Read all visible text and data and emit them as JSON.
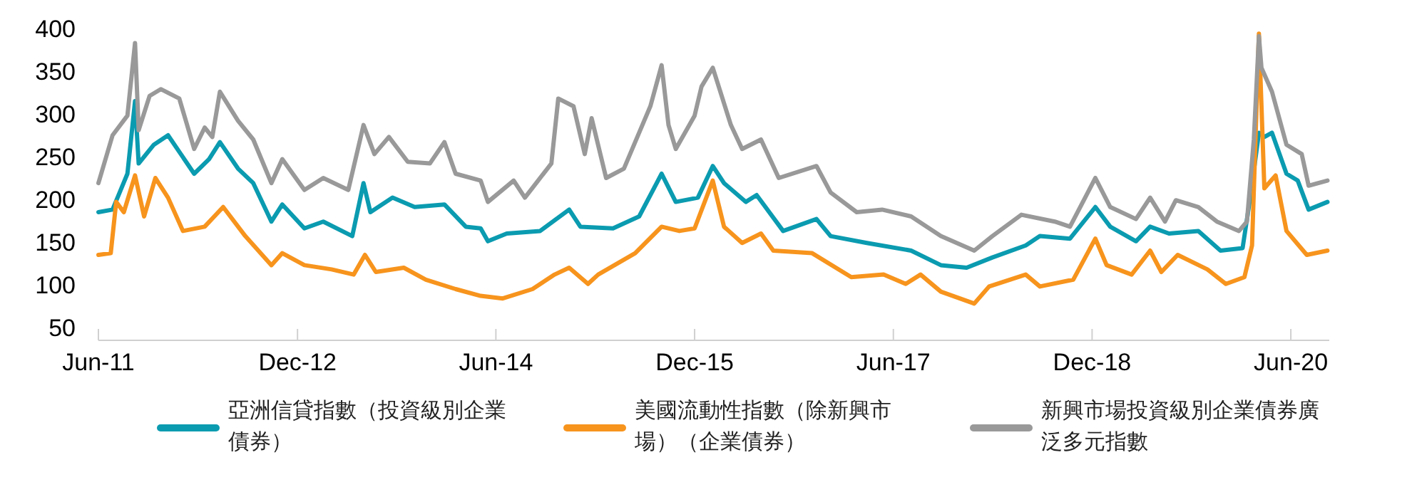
{
  "chart_data": {
    "type": "line",
    "legend": "bottom",
    "ylim": [
      50,
      400
    ],
    "yticks": [
      50,
      100,
      150,
      200,
      250,
      300,
      350,
      400
    ],
    "xlim": [
      "2011-06-01",
      "2020-09-15"
    ],
    "xticks": [
      {
        "value": "2011-06-01",
        "label": "Jun-11"
      },
      {
        "value": "2012-12-01",
        "label": "Dec-12"
      },
      {
        "value": "2014-06-01",
        "label": "Jun-14"
      },
      {
        "value": "2015-12-01",
        "label": "Dec-15"
      },
      {
        "value": "2017-06-01",
        "label": "Jun-17"
      },
      {
        "value": "2018-12-01",
        "label": "Dec-18"
      },
      {
        "value": "2020-06-01",
        "label": "Jun-20"
      }
    ],
    "series": [
      {
        "name": "亞洲信貸指數（投資級別企業債券）",
        "color": "#0b9bb0",
        "x": [
          "2011-06-01",
          "2011-07-10",
          "2011-08-20",
          "2011-09-10",
          "2011-09-20",
          "2011-11-01",
          "2011-12-10",
          "2012-02-20",
          "2012-04-01",
          "2012-05-01",
          "2012-06-20",
          "2012-08-01",
          "2012-09-20",
          "2012-10-20",
          "2012-12-20",
          "2013-02-10",
          "2013-05-01",
          "2013-06-01",
          "2013-06-20",
          "2013-08-20",
          "2013-10-20",
          "2014-01-10",
          "2014-03-10",
          "2014-04-20",
          "2014-05-10",
          "2014-07-01",
          "2014-10-01",
          "2014-12-20",
          "2015-01-20",
          "2015-04-20",
          "2015-07-01",
          "2015-09-01",
          "2015-10-10",
          "2015-12-10",
          "2016-01-20",
          "2016-02-20",
          "2016-04-20",
          "2016-05-20",
          "2016-08-01",
          "2016-11-01",
          "2016-12-10",
          "2017-03-20",
          "2017-07-20",
          "2017-10-10",
          "2017-12-20",
          "2018-03-01",
          "2018-06-01",
          "2018-07-10",
          "2018-10-01",
          "2018-12-10",
          "2019-01-20",
          "2019-04-01",
          "2019-05-10",
          "2019-07-01",
          "2019-09-20",
          "2019-11-20",
          "2020-01-20",
          "2020-02-10",
          "2020-03-05",
          "2020-03-20",
          "2020-04-10",
          "2020-05-20",
          "2020-06-20",
          "2020-07-20",
          "2020-09-10"
        ],
        "values": [
          185,
          188,
          230,
          315,
          242,
          264,
          275,
          230,
          247,
          267,
          236,
          219,
          174,
          194,
          166,
          174,
          157,
          219,
          185,
          202,
          191,
          194,
          168,
          166,
          151,
          160,
          163,
          188,
          168,
          166,
          180,
          230,
          197,
          202,
          239,
          219,
          197,
          205,
          163,
          177,
          157,
          149,
          140,
          123,
          120,
          132,
          146,
          157,
          154,
          191,
          168,
          151,
          168,
          160,
          163,
          140,
          143,
          202,
          278,
          273,
          278,
          230,
          222,
          188,
          197
        ]
      },
      {
        "name": "美國流動性指數（除新興市場）（企業債券）",
        "color": "#f7941d",
        "x": [
          "2011-06-01",
          "2011-07-05",
          "2011-07-20",
          "2011-08-10",
          "2011-09-10",
          "2011-10-05",
          "2011-11-05",
          "2011-12-10",
          "2012-01-20",
          "2012-03-20",
          "2012-05-10",
          "2012-07-10",
          "2012-09-20",
          "2012-10-20",
          "2012-12-20",
          "2013-03-05",
          "2013-05-05",
          "2013-06-05",
          "2013-07-05",
          "2013-09-20",
          "2013-11-20",
          "2014-02-10",
          "2014-04-20",
          "2014-06-20",
          "2014-09-10",
          "2014-11-10",
          "2014-12-20",
          "2015-02-10",
          "2015-03-10",
          "2015-06-20",
          "2015-09-01",
          "2015-10-20",
          "2015-12-01",
          "2016-01-20",
          "2016-02-20",
          "2016-04-10",
          "2016-06-01",
          "2016-07-05",
          "2016-10-20",
          "2017-02-05",
          "2017-05-05",
          "2017-07-05",
          "2017-08-15",
          "2017-10-10",
          "2018-01-10",
          "2018-02-20",
          "2018-06-01",
          "2018-07-10",
          "2018-10-10",
          "2018-12-10",
          "2019-01-10",
          "2019-03-20",
          "2019-05-10",
          "2019-06-10",
          "2019-07-25",
          "2019-10-15",
          "2019-12-05",
          "2020-01-25",
          "2020-02-15",
          "2020-03-05",
          "2020-03-20",
          "2020-04-20",
          "2020-05-20",
          "2020-07-15",
          "2020-09-10"
        ],
        "values": [
          135,
          137,
          197,
          185,
          228,
          180,
          225,
          202,
          163,
          168,
          191,
          157,
          123,
          137,
          123,
          118,
          112,
          135,
          115,
          120,
          106,
          95,
          87,
          84,
          95,
          112,
          120,
          101,
          112,
          137,
          168,
          163,
          166,
          222,
          168,
          149,
          160,
          140,
          137,
          109,
          112,
          101,
          112,
          92,
          78,
          98,
          112,
          98,
          106,
          154,
          123,
          112,
          140,
          115,
          135,
          118,
          101,
          109,
          146,
          394,
          213,
          228,
          163,
          135,
          140
        ]
      },
      {
        "name": "新興市場投資級別企業債券廣泛多元指數",
        "color": "#999999",
        "x": [
          "2011-06-01",
          "2011-07-10",
          "2011-08-20",
          "2011-09-10",
          "2011-09-20",
          "2011-10-20",
          "2011-11-20",
          "2012-01-10",
          "2012-02-20",
          "2012-03-20",
          "2012-04-10",
          "2012-05-01",
          "2012-06-20",
          "2012-08-01",
          "2012-09-20",
          "2012-10-20",
          "2012-12-20",
          "2013-02-10",
          "2013-04-20",
          "2013-06-01",
          "2013-07-01",
          "2013-08-10",
          "2013-10-01",
          "2013-12-01",
          "2014-01-10",
          "2014-02-10",
          "2014-04-20",
          "2014-05-10",
          "2014-07-20",
          "2014-08-20",
          "2014-11-01",
          "2014-11-20",
          "2015-01-01",
          "2015-02-01",
          "2015-02-20",
          "2015-04-01",
          "2015-05-20",
          "2015-08-01",
          "2015-09-01",
          "2015-09-20",
          "2015-10-10",
          "2015-12-01",
          "2015-12-20",
          "2016-01-20",
          "2016-03-10",
          "2016-04-10",
          "2016-06-01",
          "2016-07-20",
          "2016-11-01",
          "2016-12-10",
          "2017-02-20",
          "2017-05-01",
          "2017-07-20",
          "2017-10-10",
          "2018-01-10",
          "2018-03-01",
          "2018-05-20",
          "2018-08-20",
          "2018-10-01",
          "2018-12-10",
          "2019-01-20",
          "2019-04-01",
          "2019-05-10",
          "2019-06-20",
          "2019-07-20",
          "2019-09-20",
          "2019-11-10",
          "2020-01-10",
          "2020-02-01",
          "2020-02-20",
          "2020-03-05",
          "2020-03-12",
          "2020-04-10",
          "2020-05-20",
          "2020-07-01",
          "2020-07-20",
          "2020-09-10"
        ],
        "values": [
          219,
          275,
          298,
          383,
          281,
          321,
          329,
          318,
          259,
          284,
          273,
          326,
          292,
          270,
          219,
          247,
          211,
          225,
          211,
          287,
          253,
          273,
          244,
          242,
          267,
          230,
          222,
          197,
          222,
          202,
          242,
          318,
          309,
          253,
          295,
          225,
          236,
          309,
          357,
          287,
          259,
          298,
          332,
          354,
          287,
          259,
          270,
          225,
          239,
          208,
          185,
          188,
          180,
          157,
          140,
          157,
          182,
          174,
          168,
          225,
          191,
          177,
          202,
          174,
          199,
          191,
          174,
          163,
          174,
          270,
          391,
          354,
          326,
          264,
          253,
          216,
          222
        ]
      }
    ]
  }
}
